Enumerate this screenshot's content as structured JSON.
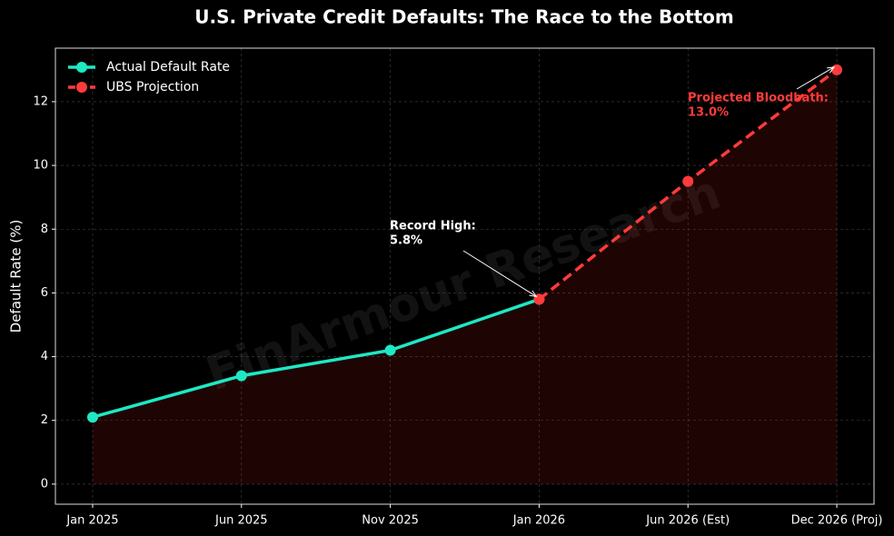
{
  "chart_data": {
    "type": "line",
    "title": "U.S. Private Credit Defaults: The Race to the Bottom",
    "y_label": "Default Rate (%)",
    "watermark": "FinArmour Research",
    "categories": [
      "Jan 2025",
      "Jun 2025",
      "Nov 2025",
      "Jan 2026",
      "Jun 2026 (Est)",
      "Dec 2026 (Proj)"
    ],
    "series": [
      {
        "name": "Actual Default Rate",
        "color": "#1de9c4",
        "dashed": false,
        "values": [
          2.1,
          3.4,
          4.2,
          5.8,
          null,
          null
        ]
      },
      {
        "name": "UBS Projection",
        "color": "#ff3b3b",
        "dashed": true,
        "values": [
          null,
          null,
          null,
          5.8,
          9.5,
          13.0
        ]
      }
    ],
    "annotations": [
      {
        "lines": [
          "Record High:",
          "5.8%"
        ],
        "color": "#ffffff"
      },
      {
        "lines": [
          "Projected Bloodbath:",
          "13.0%"
        ],
        "color": "#ff3b3b"
      }
    ],
    "ylim": [
      -0.63,
      13.68
    ],
    "yticks": [
      0,
      2,
      4,
      6,
      8,
      10,
      12
    ],
    "grid": true,
    "legend": "upper left"
  }
}
